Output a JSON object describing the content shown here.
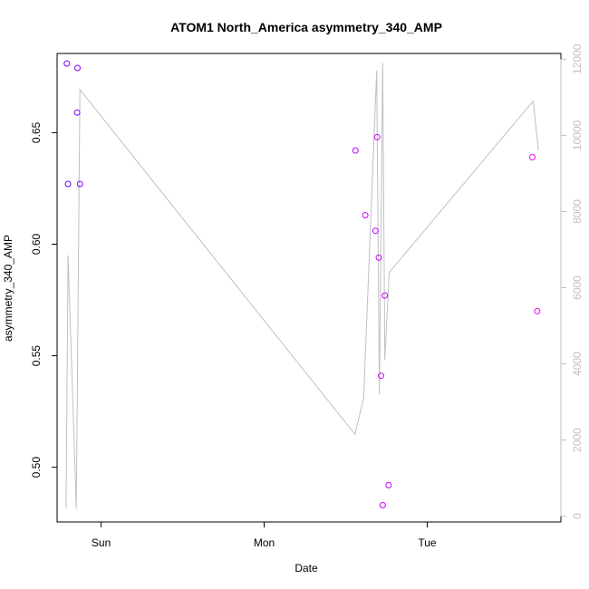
{
  "chart_data": {
    "type": "scatter",
    "title": "ATOM1 North_America asymmetry_340_AMP",
    "xlabel": "Date",
    "ylabel": "asymmetry_340_AMP",
    "x_axis": {
      "unit": "days from Sat 00:00",
      "range": [
        0.73,
        3.82
      ],
      "ticks": [
        {
          "value": 1,
          "label": "Sun"
        },
        {
          "value": 2,
          "label": "Mon"
        },
        {
          "value": 3,
          "label": "Tue"
        }
      ]
    },
    "y_left": {
      "range": [
        0.4755,
        0.6855
      ],
      "ticks": [
        0.5,
        0.55,
        0.6,
        0.65
      ],
      "tick_labels": [
        "0.50",
        "0.55",
        "0.60",
        "0.65"
      ]
    },
    "y_right": {
      "range": [
        -150,
        12150
      ],
      "ticks": [
        0,
        2000,
        4000,
        6000,
        8000,
        10000,
        12000
      ],
      "tick_labels": [
        "0",
        "2000",
        "4000",
        "6000",
        "8000",
        "10000",
        "12000"
      ],
      "color": "#c0c0c0"
    },
    "scatter_series": {
      "name": "asymmetry_340_AMP",
      "points": [
        {
          "x": 0.79,
          "y": 0.681,
          "color": "#8000ff"
        },
        {
          "x": 0.797,
          "y": 0.627,
          "color": "#8000ff"
        },
        {
          "x": 0.855,
          "y": 0.679,
          "color": "#8000ff"
        },
        {
          "x": 0.853,
          "y": 0.659,
          "color": "#8000ff"
        },
        {
          "x": 0.87,
          "y": 0.627,
          "color": "#8000ff"
        },
        {
          "x": 2.56,
          "y": 0.642,
          "color": "#c000ff"
        },
        {
          "x": 2.62,
          "y": 0.613,
          "color": "#c000ff"
        },
        {
          "x": 2.683,
          "y": 0.606,
          "color": "#c000ff"
        },
        {
          "x": 2.693,
          "y": 0.648,
          "color": "#c000ff"
        },
        {
          "x": 2.703,
          "y": 0.594,
          "color": "#c000ff"
        },
        {
          "x": 2.717,
          "y": 0.541,
          "color": "#c000ff"
        },
        {
          "x": 2.727,
          "y": 0.483,
          "color": "#c000ff"
        },
        {
          "x": 2.74,
          "y": 0.577,
          "color": "#c000ff"
        },
        {
          "x": 2.763,
          "y": 0.492,
          "color": "#c000ff"
        },
        {
          "x": 3.645,
          "y": 0.639,
          "color": "#ff00ff"
        },
        {
          "x": 3.675,
          "y": 0.57,
          "color": "#ff00ff"
        }
      ]
    },
    "line_series": {
      "axis": "right",
      "color": "#c0c0c0",
      "points": [
        {
          "x": 0.785,
          "y": 200
        },
        {
          "x": 0.797,
          "y": 6850
        },
        {
          "x": 0.848,
          "y": 200
        },
        {
          "x": 0.87,
          "y": 11200
        },
        {
          "x": 2.557,
          "y": 2150
        },
        {
          "x": 2.61,
          "y": 3100
        },
        {
          "x": 2.69,
          "y": 11700
        },
        {
          "x": 2.707,
          "y": 3200
        },
        {
          "x": 2.727,
          "y": 11900
        },
        {
          "x": 2.74,
          "y": 4100
        },
        {
          "x": 2.767,
          "y": 6400
        },
        {
          "x": 3.65,
          "y": 10900
        },
        {
          "x": 3.682,
          "y": 9600
        }
      ]
    },
    "grid": false,
    "legend": "none"
  }
}
